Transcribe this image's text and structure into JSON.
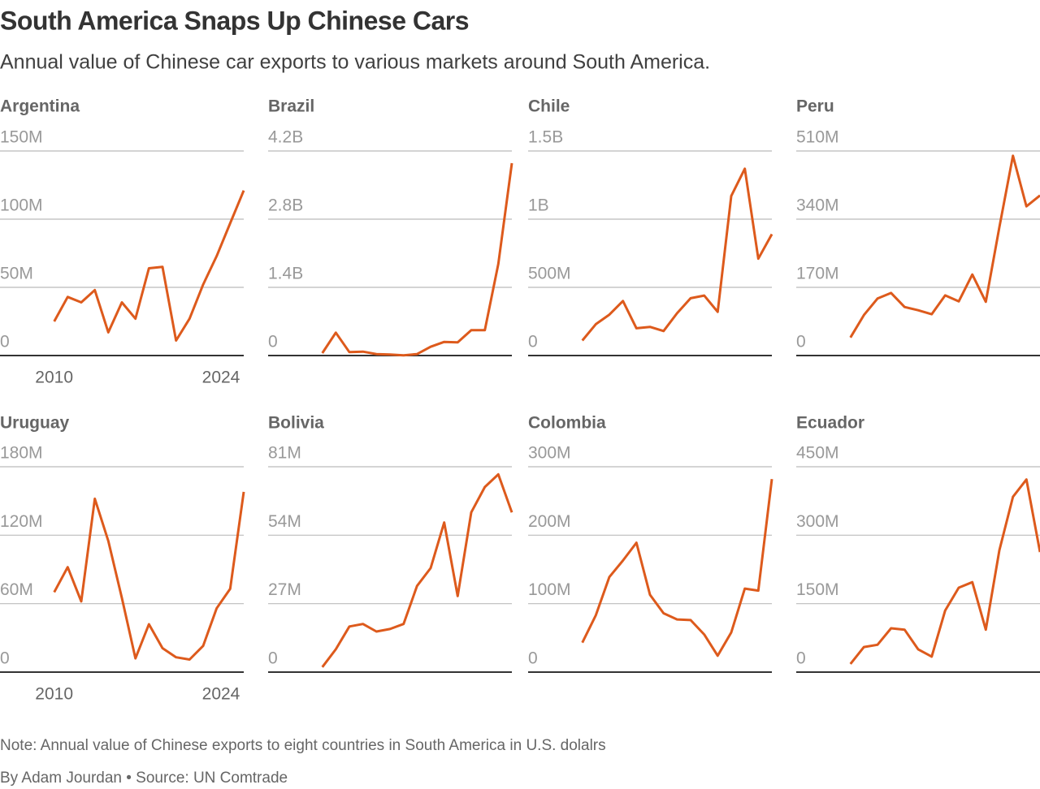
{
  "title": "South America Snaps Up Chinese Cars",
  "subtitle": "Annual value of Chinese car exports to various markets around South America.",
  "note": "Note: Annual value of Chinese exports to eight countries in South America in U.S. dolalrs",
  "byline": "By Adam Jourdan • Source: UN Comtrade",
  "chart_data": [
    {
      "type": "line",
      "title": "Argentina",
      "color": "#dd5a1c",
      "x": [
        2010,
        2011,
        2012,
        2013,
        2014,
        2015,
        2016,
        2017,
        2018,
        2019,
        2020,
        2021,
        2022,
        2023,
        2024
      ],
      "values": [
        25000000,
        43000000,
        39000000,
        48000000,
        17000000,
        39000000,
        27000000,
        64000000,
        65000000,
        11000000,
        27000000,
        52000000,
        73000000,
        97000000,
        121000000
      ],
      "xlim": [
        2006,
        2024
      ],
      "xticks": [
        2010,
        2024
      ],
      "ylim": [
        0,
        150000000
      ],
      "yticks": [
        {
          "value": 0,
          "label": "0"
        },
        {
          "value": 50000000,
          "label": "50M"
        },
        {
          "value": 100000000,
          "label": "100M"
        },
        {
          "value": 150000000,
          "label": "150M"
        }
      ]
    },
    {
      "type": "line",
      "title": "Brazil",
      "color": "#dd5a1c",
      "x": [
        2010,
        2011,
        2012,
        2013,
        2014,
        2015,
        2016,
        2017,
        2018,
        2019,
        2020,
        2021,
        2022,
        2023,
        2024
      ],
      "values": [
        50000000,
        470000000,
        70000000,
        80000000,
        30000000,
        20000000,
        5000000,
        30000000,
        180000000,
        280000000,
        270000000,
        520000000,
        520000000,
        1880000000,
        3950000000
      ],
      "xlim": [
        2006,
        2024
      ],
      "ylim": [
        0,
        4200000000
      ],
      "yticks": [
        {
          "value": 0,
          "label": "0"
        },
        {
          "value": 1400000000,
          "label": "1.4B"
        },
        {
          "value": 2800000000,
          "label": "2.8B"
        },
        {
          "value": 4200000000,
          "label": "4.2B"
        }
      ]
    },
    {
      "type": "line",
      "title": "Chile",
      "color": "#dd5a1c",
      "x": [
        2010,
        2011,
        2012,
        2013,
        2014,
        2015,
        2016,
        2017,
        2018,
        2019,
        2020,
        2021,
        2022,
        2023,
        2024
      ],
      "values": [
        110000000,
        230000000,
        300000000,
        400000000,
        200000000,
        210000000,
        180000000,
        310000000,
        420000000,
        440000000,
        320000000,
        1170000000,
        1370000000,
        710000000,
        890000000
      ],
      "xlim": [
        2006,
        2024
      ],
      "ylim": [
        0,
        1500000000
      ],
      "yticks": [
        {
          "value": 0,
          "label": "0"
        },
        {
          "value": 500000000,
          "label": "500M"
        },
        {
          "value": 1000000000,
          "label": "1B"
        },
        {
          "value": 1500000000,
          "label": "1.5B"
        }
      ]
    },
    {
      "type": "line",
      "title": "Peru",
      "color": "#dd5a1c",
      "x": [
        2010,
        2011,
        2012,
        2013,
        2014,
        2015,
        2016,
        2017,
        2018,
        2019,
        2020,
        2021,
        2022,
        2023,
        2024
      ],
      "values": [
        45000000,
        101000000,
        142000000,
        156000000,
        121000000,
        113000000,
        103000000,
        150000000,
        135000000,
        202000000,
        134000000,
        320000000,
        498000000,
        372000000,
        399000000
      ],
      "xlim": [
        2006,
        2024
      ],
      "ylim": [
        0,
        510000000
      ],
      "yticks": [
        {
          "value": 0,
          "label": "0"
        },
        {
          "value": 170000000,
          "label": "170M"
        },
        {
          "value": 340000000,
          "label": "340M"
        },
        {
          "value": 510000000,
          "label": "510M"
        }
      ]
    },
    {
      "type": "line",
      "title": "Uruguay",
      "color": "#dd5a1c",
      "x": [
        2010,
        2011,
        2012,
        2013,
        2014,
        2015,
        2016,
        2017,
        2018,
        2019,
        2020,
        2021,
        2022,
        2023,
        2024
      ],
      "values": [
        70000000,
        92000000,
        62000000,
        152000000,
        115000000,
        65000000,
        12000000,
        42000000,
        21000000,
        13000000,
        11000000,
        23000000,
        56000000,
        73000000,
        158000000
      ],
      "xlim": [
        2006,
        2024
      ],
      "xticks": [
        2010,
        2024
      ],
      "ylim": [
        0,
        180000000
      ],
      "yticks": [
        {
          "value": 0,
          "label": "0"
        },
        {
          "value": 60000000,
          "label": "60M"
        },
        {
          "value": 120000000,
          "label": "120M"
        },
        {
          "value": 180000000,
          "label": "180M"
        }
      ]
    },
    {
      "type": "line",
      "title": "Bolivia",
      "color": "#dd5a1c",
      "x": [
        2010,
        2011,
        2012,
        2013,
        2014,
        2015,
        2016,
        2017,
        2018,
        2019,
        2020,
        2021,
        2022,
        2023,
        2024
      ],
      "values": [
        2000000,
        9000000,
        18000000,
        19000000,
        16000000,
        17000000,
        19000000,
        34000000,
        41000000,
        59000000,
        30000000,
        63000000,
        73000000,
        78000000,
        63000000
      ],
      "xlim": [
        2006,
        2024
      ],
      "ylim": [
        0,
        81000000
      ],
      "yticks": [
        {
          "value": 0,
          "label": "0"
        },
        {
          "value": 27000000,
          "label": "27M"
        },
        {
          "value": 54000000,
          "label": "54M"
        },
        {
          "value": 81000000,
          "label": "81M"
        }
      ]
    },
    {
      "type": "line",
      "title": "Colombia",
      "color": "#dd5a1c",
      "x": [
        2010,
        2011,
        2012,
        2013,
        2014,
        2015,
        2016,
        2017,
        2018,
        2019,
        2020,
        2021,
        2022,
        2023,
        2024
      ],
      "values": [
        43000000,
        83000000,
        139000000,
        163000000,
        189000000,
        113000000,
        86000000,
        77000000,
        76000000,
        55000000,
        24000000,
        58000000,
        122000000,
        119000000,
        282000000
      ],
      "xlim": [
        2006,
        2024
      ],
      "ylim": [
        0,
        300000000
      ],
      "yticks": [
        {
          "value": 0,
          "label": "0"
        },
        {
          "value": 100000000,
          "label": "100M"
        },
        {
          "value": 200000000,
          "label": "200M"
        },
        {
          "value": 300000000,
          "label": "300M"
        }
      ]
    },
    {
      "type": "line",
      "title": "Ecuador",
      "color": "#dd5a1c",
      "x": [
        2010,
        2011,
        2012,
        2013,
        2014,
        2015,
        2016,
        2017,
        2018,
        2019,
        2020,
        2021,
        2022,
        2023,
        2024
      ],
      "values": [
        18000000,
        55000000,
        60000000,
        96000000,
        93000000,
        50000000,
        34000000,
        135000000,
        185000000,
        197000000,
        93000000,
        267000000,
        384000000,
        422000000,
        263000000
      ],
      "xlim": [
        2006,
        2024
      ],
      "ylim": [
        0,
        450000000
      ],
      "yticks": [
        {
          "value": 0,
          "label": "0"
        },
        {
          "value": 150000000,
          "label": "150M"
        },
        {
          "value": 300000000,
          "label": "300M"
        },
        {
          "value": 450000000,
          "label": "450M"
        }
      ]
    }
  ]
}
